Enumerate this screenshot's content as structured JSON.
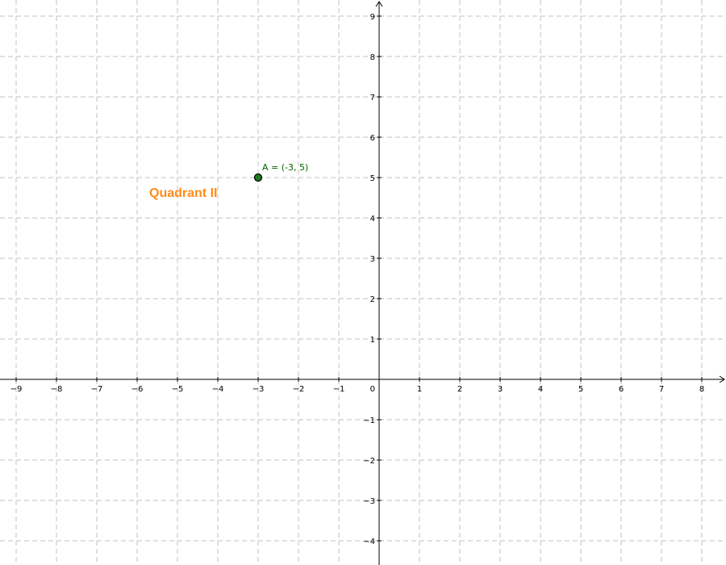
{
  "graph": {
    "x_range": [
      -9.4,
      8.6
    ],
    "y_range": [
      -4.6,
      9.4
    ],
    "x_ticks": [
      -9,
      -8,
      -7,
      -6,
      -5,
      -4,
      -3,
      -2,
      -1,
      1,
      2,
      3,
      4,
      5,
      6,
      7,
      8
    ],
    "y_ticks": [
      -4,
      -3,
      -2,
      -1,
      1,
      2,
      3,
      4,
      5,
      6,
      7,
      8,
      9
    ],
    "x_tick_labels": [
      "−9",
      "−8",
      "−7",
      "−6",
      "−5",
      "−4",
      "−3",
      "−2",
      "−1",
      "1",
      "2",
      "3",
      "4",
      "5",
      "6",
      "7",
      "8"
    ],
    "y_tick_labels": [
      "−4",
      "−3",
      "−2",
      "−1",
      "1",
      "2",
      "3",
      "4",
      "5",
      "6",
      "7",
      "8",
      "9"
    ],
    "origin_label": "0",
    "grid": true,
    "grid_color": "#c0c0c0",
    "axis_color": "#000000"
  },
  "point_a": {
    "x": -3,
    "y": 5,
    "label": "A = (-3, 5)",
    "color": "#006400",
    "fill": "#1e7a1e"
  },
  "quadrant_label": {
    "text": "Quadrant II",
    "x": -5.7,
    "y": 4.52,
    "color": "#ff8c1a"
  }
}
